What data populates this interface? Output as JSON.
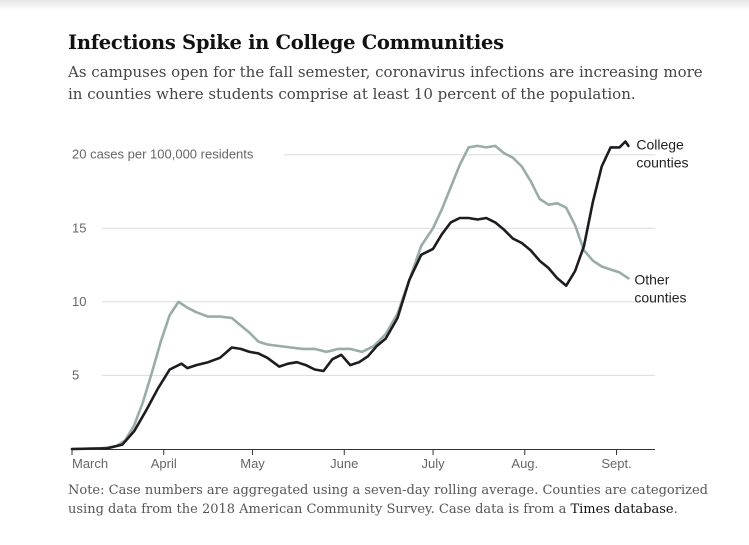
{
  "title": "Infections Spike in College Communities",
  "subtitle": "As campuses open for the fall semester, coronavirus infections are increasing more in counties where students comprise at least 10 percent of the population.",
  "note": {
    "text": "Note: Case numbers are aggregated using a seven-day rolling average. Counties are categorized using data from the 2018 American Community Survey. Case data is from a",
    "link": "Times database",
    "end": "."
  },
  "colors": {
    "college": "#1f1c21",
    "other": "#9aaca8",
    "grid": "#dcdcdc",
    "axis": "#333333",
    "text": "#666666"
  },
  "chart_data": {
    "type": "line",
    "title": "Infections Spike in College Communities",
    "xlabel": "",
    "ylabel": "cases per 100,000 residents",
    "xlim": [
      0,
      197
    ],
    "ylim": [
      0,
      21
    ],
    "grid": true,
    "y_ticks": [
      {
        "value": 5,
        "label": "5"
      },
      {
        "value": 10,
        "label": "10"
      },
      {
        "value": 15,
        "label": "15"
      },
      {
        "value": 20,
        "label": "20 cases per 100,000 residents"
      }
    ],
    "x_ticks": [
      {
        "value": 0,
        "label": "March"
      },
      {
        "value": 31,
        "label": "April"
      },
      {
        "value": 61,
        "label": "May"
      },
      {
        "value": 92,
        "label": "June"
      },
      {
        "value": 122,
        "label": "July"
      },
      {
        "value": 153,
        "label": "Aug."
      },
      {
        "value": 184,
        "label": "Sept."
      }
    ],
    "series": [
      {
        "name": "Other counties",
        "label_lines": [
          "Other",
          "counties"
        ],
        "x": [
          0,
          10,
          15,
          18,
          21,
          24,
          27,
          30,
          33,
          36,
          39,
          42,
          46,
          50,
          54,
          57,
          60,
          63,
          66,
          70,
          74,
          78,
          82,
          86,
          90,
          94,
          98,
          102,
          106,
          110,
          114,
          118,
          122,
          125,
          128,
          131,
          134,
          137,
          140,
          143,
          146,
          149,
          152,
          155,
          158,
          161,
          164,
          167,
          170,
          173,
          176,
          179,
          182,
          185,
          188
        ],
        "y": [
          0,
          0.05,
          0.2,
          0.6,
          1.6,
          3.2,
          5.2,
          7.3,
          9.1,
          10.0,
          9.6,
          9.3,
          9.0,
          9.0,
          8.9,
          8.4,
          7.9,
          7.3,
          7.1,
          7.0,
          6.9,
          6.8,
          6.8,
          6.6,
          6.8,
          6.8,
          6.6,
          7.0,
          7.8,
          9.2,
          11.5,
          13.8,
          15.0,
          16.3,
          17.8,
          19.3,
          20.5,
          20.6,
          20.5,
          20.6,
          20.1,
          19.8,
          19.2,
          18.2,
          17.0,
          16.6,
          16.7,
          16.4,
          15.2,
          13.5,
          12.8,
          12.4,
          12.2,
          12.0,
          11.6
        ]
      },
      {
        "name": "College counties",
        "label_lines": [
          "College",
          "counties"
        ],
        "x": [
          0,
          12,
          17,
          21,
          25,
          29,
          33,
          37,
          39,
          42,
          46,
          50,
          54,
          57,
          60,
          63,
          66,
          70,
          73,
          76,
          79,
          82,
          85,
          88,
          91,
          94,
          97,
          100,
          103,
          106,
          110,
          114,
          118,
          122,
          125,
          128,
          131,
          134,
          137,
          140,
          143,
          146,
          149,
          152,
          155,
          158,
          161,
          164,
          167,
          170,
          173,
          176,
          179,
          182,
          185,
          187,
          188
        ],
        "y": [
          0,
          0.05,
          0.3,
          1.2,
          2.6,
          4.1,
          5.4,
          5.8,
          5.5,
          5.7,
          5.9,
          6.2,
          6.9,
          6.8,
          6.6,
          6.5,
          6.2,
          5.6,
          5.8,
          5.9,
          5.7,
          5.4,
          5.3,
          6.1,
          6.4,
          5.7,
          5.9,
          6.3,
          7.0,
          7.5,
          8.9,
          11.5,
          13.2,
          13.6,
          14.6,
          15.4,
          15.7,
          15.7,
          15.6,
          15.7,
          15.4,
          14.9,
          14.3,
          14.0,
          13.5,
          12.8,
          12.3,
          11.6,
          11.1,
          12.1,
          13.8,
          16.8,
          19.2,
          20.5,
          20.5,
          20.9,
          20.6
        ]
      }
    ]
  }
}
